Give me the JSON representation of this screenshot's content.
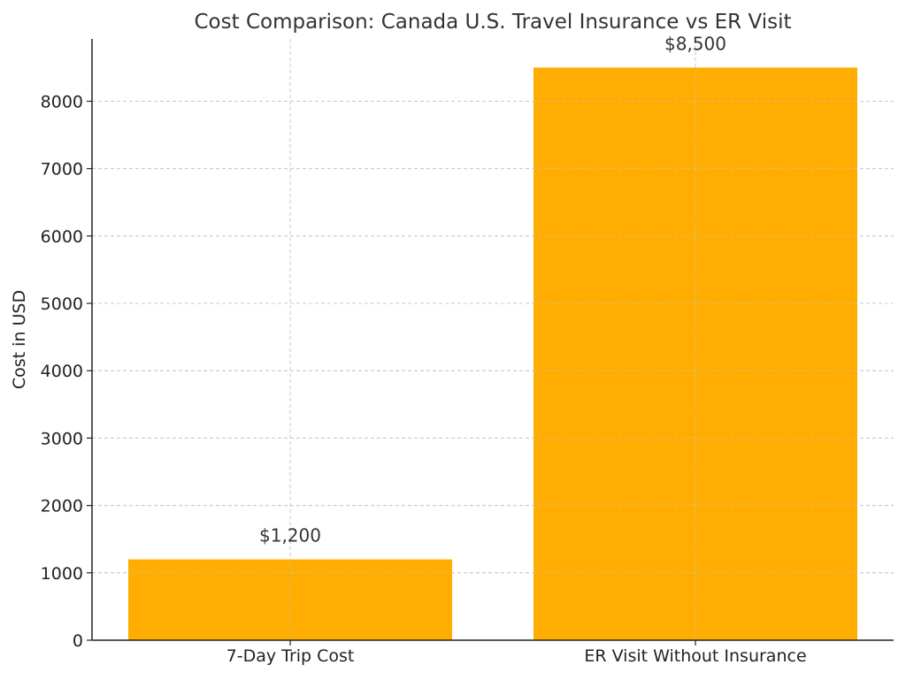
{
  "chart_data": {
    "type": "bar",
    "title": "Cost Comparison: Canada U.S. Travel Insurance vs ER Visit",
    "xlabel": "",
    "ylabel": "Cost in USD",
    "categories": [
      "7-Day Trip Cost",
      "ER Visit Without Insurance"
    ],
    "values": [
      1200,
      8500
    ],
    "data_labels": [
      "$1,200",
      "$8,500"
    ],
    "ylim": [
      0,
      8925
    ],
    "yticks": [
      0,
      1000,
      2000,
      3000,
      4000,
      5000,
      6000,
      7000,
      8000
    ],
    "ytick_labels": [
      "0",
      "1000",
      "2000",
      "3000",
      "4000",
      "5000",
      "6000",
      "7000",
      "8000"
    ],
    "grid": true,
    "bar_color": "#FFAD00"
  }
}
